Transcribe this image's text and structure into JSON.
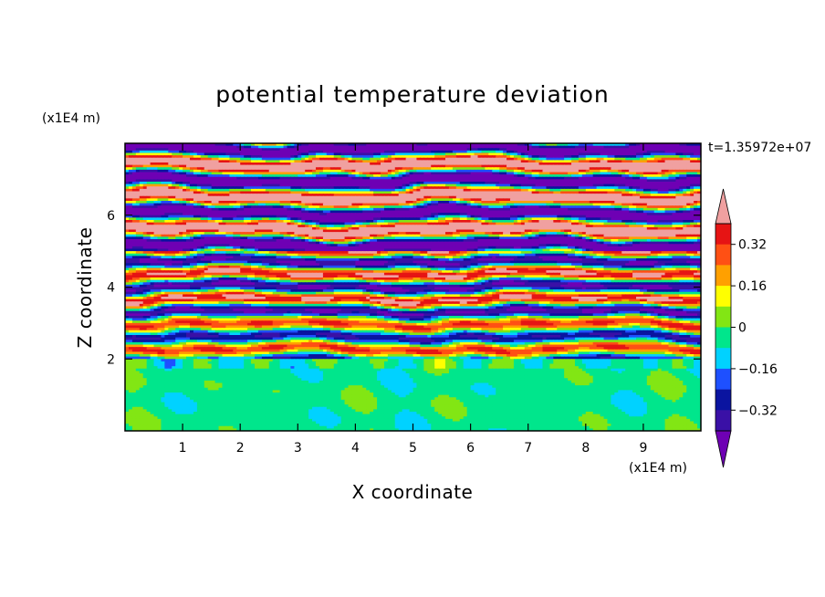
{
  "chart_data": {
    "type": "heatmap",
    "title": "potential temperature deviation",
    "xlabel": "X coordinate",
    "ylabel": "Z coordinate",
    "x_unit": "(x1E4 m)",
    "y_unit": "(x1E4 m)",
    "time_label": "t=1.35972e+07",
    "xlim": [
      0,
      10
    ],
    "ylim": [
      0,
      8
    ],
    "x_ticks": [
      "1",
      "2",
      "3",
      "4",
      "5",
      "6",
      "7",
      "8",
      "9"
    ],
    "y_ticks": [
      "2",
      "4",
      "6"
    ],
    "colorbar": {
      "levels": [
        -0.48,
        -0.4,
        -0.32,
        -0.24,
        -0.16,
        -0.08,
        0,
        0.08,
        0.16,
        0.24,
        0.32,
        0.4,
        0.48
      ],
      "colors": [
        "#6e00b4",
        "#3a10a6",
        "#0a14a0",
        "#1e50ff",
        "#00d2ff",
        "#00e68c",
        "#82e614",
        "#ffff00",
        "#ffa000",
        "#ff5014",
        "#e61414",
        "#f0a0a0"
      ],
      "tick_labels": [
        "0.32",
        "0.16",
        "0",
        "-0.16",
        "-0.32"
      ],
      "tick_values": [
        0.32,
        0.16,
        0,
        -0.16,
        -0.32
      ],
      "extend": "both"
    },
    "regions": [
      {
        "z_range": [
          0,
          2
        ],
        "description_values": [
          -0.08,
          0
        ]
      },
      {
        "z_range": [
          2,
          5
        ],
        "description_values": [
          -0.48,
          0.48
        ]
      },
      {
        "z_range": [
          5,
          8
        ],
        "description_values": [
          -0.48,
          0.48
        ]
      }
    ]
  }
}
